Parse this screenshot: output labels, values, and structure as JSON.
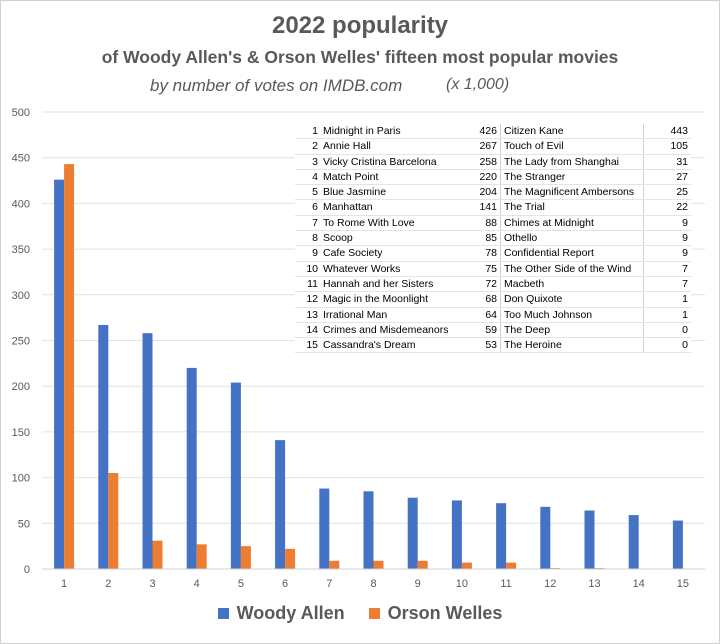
{
  "chart_data": {
    "type": "bar",
    "title": "2022 popularity",
    "subtitle": "of Woody Allen's & Orson Welles' fifteen most popular movies",
    "subtitle2": "by number of votes on IMDB.com",
    "unit_note": "(x 1,000)",
    "xlabel": "",
    "ylabel": "",
    "categories": [
      "1",
      "2",
      "3",
      "4",
      "5",
      "6",
      "7",
      "8",
      "9",
      "10",
      "11",
      "12",
      "13",
      "14",
      "15"
    ],
    "ylim": [
      0,
      500
    ],
    "yticks": [
      0,
      50,
      100,
      150,
      200,
      250,
      300,
      350,
      400,
      450,
      500
    ],
    "grid": true,
    "legend_position": "bottom",
    "series": [
      {
        "name": "Woody Allen",
        "color": "#4472C4",
        "values": [
          426,
          267,
          258,
          220,
          204,
          141,
          88,
          85,
          78,
          75,
          72,
          68,
          64,
          59,
          53
        ]
      },
      {
        "name": "Orson Welles",
        "color": "#ED7D31",
        "values": [
          443,
          105,
          31,
          27,
          25,
          22,
          9,
          9,
          9,
          7,
          7,
          1,
          1,
          0,
          0
        ]
      }
    ],
    "table": {
      "woody_titles": [
        "Midnight in Paris",
        "Annie Hall",
        "Vicky Cristina Barcelona",
        "Match Point",
        "Blue Jasmine",
        "Manhattan",
        "To Rome With Love",
        "Scoop",
        "Cafe Society",
        "Whatever Works",
        "Hannah and her Sisters",
        "Magic in the Moonlight",
        "Irrational Man",
        "Crimes and Misdemeanors",
        "Cassandra's Dream"
      ],
      "orson_titles": [
        "Citizen Kane",
        "Touch of Evil",
        "The Lady from Shanghai",
        "The Stranger",
        "The Magnificent Ambersons",
        "The Trial",
        "Chimes at Midnight",
        "Othello",
        "Confidential Report",
        "The Other Side of the Wind",
        "Macbeth",
        "Don Quixote",
        "Too Much Johnson",
        "The Deep",
        "The Heroine"
      ]
    }
  }
}
